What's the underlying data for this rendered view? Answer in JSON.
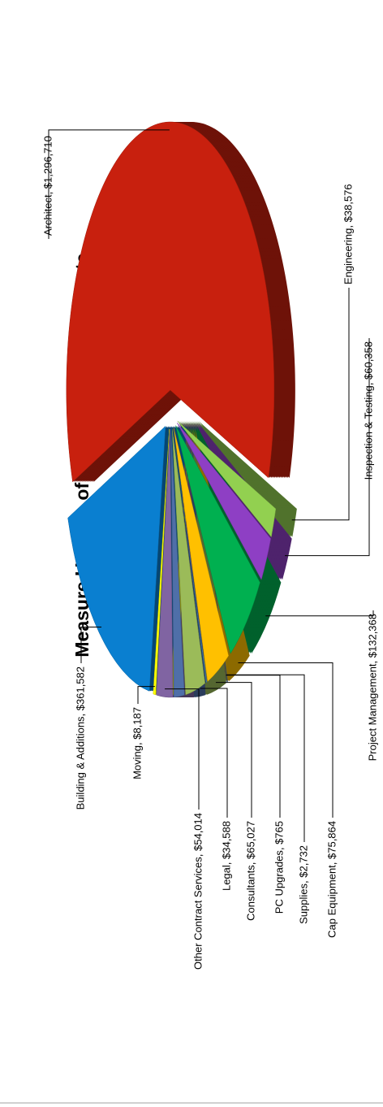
{
  "chart_data": {
    "type": "pie3d",
    "title": "Measure U Share of Project Expenses to Date",
    "values": [
      1296710,
      38576,
      60358,
      132368,
      75864,
      2732,
      765,
      65027,
      34588,
      54014,
      8187,
      361582
    ],
    "value_labels": [
      "Architect, $1,296,710",
      "Engineering, $38,576",
      "Inspection & Testing, $60,358",
      "Project Management, $132,368",
      "Cap Equipment, $75,864",
      "Supplies, $2,732",
      "PC Upgrades, $765",
      "Consultants, $65,027",
      "Legal, $34,588",
      "Other Contract Services, $54,014",
      "Moving, $8,187",
      "Building & Additions, $361,582"
    ],
    "colors": [
      "#c8200e",
      "#92d050",
      "#8e3fc4",
      "#00b050",
      "#ffc000",
      "#4f81bd",
      "#1f4e79",
      "#9bbb59",
      "#4f6fa8",
      "#8064a2",
      "#ffff00",
      "#0a7fd0"
    ]
  }
}
